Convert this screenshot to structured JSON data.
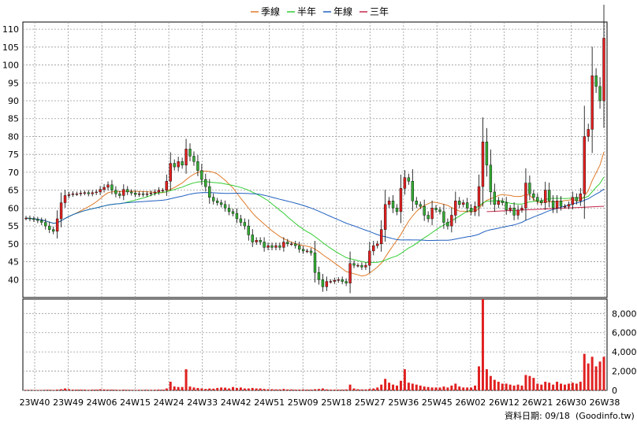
{
  "chart_data": [
    {
      "type": "candlestick",
      "legend_placement": "top-center",
      "grid": true,
      "ylim": [
        35,
        112
      ],
      "y_ticks": [
        "110",
        "105",
        "100",
        "95",
        "90",
        "85",
        "80",
        "75",
        "70",
        "65",
        "60",
        "55",
        "50",
        "45",
        "40"
      ],
      "x_ticks": [
        "23W40",
        "23W49",
        "24W06",
        "24W15",
        "24W24",
        "24W33",
        "24W42",
        "24W51",
        "25W09",
        "25W18",
        "25W27",
        "25W36",
        "25W45",
        "26W02",
        "26W12",
        "26W21",
        "26W30",
        "26W38"
      ],
      "legend": [
        {
          "label": "季線",
          "color": "#e07b2a"
        },
        {
          "label": "半年",
          "color": "#33cc33"
        },
        {
          "label": "年線",
          "color": "#2060c0"
        },
        {
          "label": "三年",
          "color": "#c8284b"
        }
      ],
      "candle_up_color": "#e02020",
      "candle_down_color": "#33aa33",
      "close": [
        57.2,
        57.0,
        56.8,
        56.5,
        56.0,
        55.0,
        54.0,
        53.5,
        57.0,
        61.5,
        63.5,
        63.8,
        64.0,
        64.0,
        64.2,
        64.3,
        64.0,
        64.3,
        64.5,
        65.2,
        65.8,
        66.5,
        65.0,
        64.0,
        63.5,
        65.2,
        64.5,
        64.2,
        63.8,
        64.0,
        63.8,
        64.0,
        64.2,
        64.5,
        65.0,
        65.0,
        67.5,
        72.5,
        71.5,
        73.0,
        72.0,
        76.5,
        74.5,
        73.0,
        70.5,
        68.0,
        66.0,
        63.0,
        62.0,
        61.5,
        61.0,
        60.0,
        59.0,
        58.5,
        57.0,
        56.0,
        55.0,
        52.5,
        50.5,
        51.0,
        50.5,
        49.0,
        49.5,
        49.0,
        49.5,
        49.0,
        50.5,
        50.0,
        50.0,
        49.5,
        48.5,
        48.0,
        48.0,
        47.5,
        42.0,
        40.0,
        38.0,
        39.5,
        39.5,
        39.8,
        40.0,
        39.5,
        39.0,
        44.5,
        44.0,
        44.0,
        43.5,
        44.0,
        48.0,
        49.5,
        50.0,
        54.0,
        61.0,
        62.0,
        60.0,
        59.0,
        65.5,
        68.5,
        67.5,
        62.0,
        61.0,
        60.5,
        58.0,
        57.0,
        60.0,
        59.5,
        59.0,
        56.0,
        55.0,
        58.0,
        62.0,
        61.0,
        61.5,
        60.0,
        59.0,
        60.5,
        66.0,
        78.5,
        72.0,
        64.5,
        61.0,
        62.0,
        61.5,
        59.5,
        60.0,
        58.0,
        59.5,
        60.0,
        67.0,
        64.0,
        63.0,
        62.0,
        61.5,
        65.0,
        62.0,
        60.0,
        62.0,
        60.5,
        60.5,
        61.0,
        63.0,
        62.0,
        64.0,
        80.0,
        82.0,
        97.0,
        94.0,
        90.0,
        107.5
      ],
      "volume_axis": {
        "ticks": [
          "8,000",
          "6,000",
          "4,000",
          "2,000",
          "0"
        ],
        "ylim": [
          0,
          9500
        ]
      },
      "volume": [
        50,
        40,
        40,
        40,
        40,
        50,
        60,
        50,
        80,
        120,
        200,
        130,
        80,
        80,
        80,
        80,
        60,
        80,
        80,
        120,
        100,
        80,
        80,
        70,
        60,
        80,
        60,
        50,
        50,
        60,
        50,
        60,
        60,
        70,
        80,
        80,
        200,
        900,
        400,
        350,
        350,
        2200,
        400,
        300,
        250,
        200,
        150,
        200,
        180,
        250,
        300,
        280,
        200,
        350,
        250,
        300,
        200,
        200,
        250,
        200,
        200,
        150,
        120,
        120,
        100,
        100,
        150,
        100,
        100,
        80,
        80,
        100,
        80,
        80,
        120,
        150,
        200,
        100,
        80,
        80,
        80,
        80,
        100,
        600,
        200,
        120,
        100,
        100,
        150,
        200,
        300,
        600,
        1200,
        800,
        600,
        500,
        1000,
        2200,
        800,
        700,
        600,
        500,
        400,
        350,
        300,
        300,
        300,
        400,
        300,
        500,
        700,
        400,
        300,
        300,
        300,
        500,
        2500,
        9500,
        2200,
        1500,
        1100,
        900,
        700,
        700,
        600,
        500,
        600,
        500,
        1600,
        1500,
        1300,
        700,
        600,
        900,
        800,
        600,
        900,
        700,
        600,
        700,
        800,
        700,
        900,
        3800,
        2800,
        3500,
        2500,
        3000,
        3500
      ]
    }
  ],
  "footer": {
    "date_label": "資料日期: 09/18",
    "source": "(Goodinfo.tw)"
  }
}
